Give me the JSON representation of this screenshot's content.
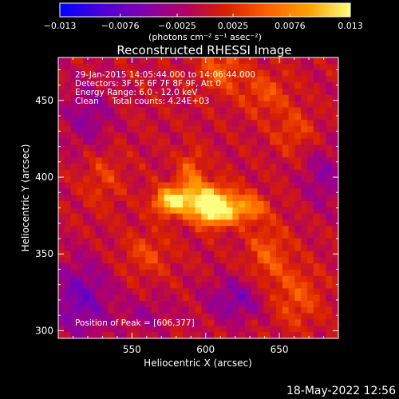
{
  "chart_data": {
    "type": "heatmap",
    "title": "Reconstructed RHESSI Image",
    "xlabel": "Heliocentric X (arcsec)",
    "ylabel": "Heliocentric Y (arcsec)",
    "xlim": [
      500,
      690
    ],
    "ylim": [
      295,
      478
    ],
    "x_ticks": [
      550,
      600,
      650
    ],
    "y_ticks": [
      300,
      350,
      400,
      450
    ],
    "colorbar": {
      "min": -0.013,
      "max": 0.013,
      "tick_values": [
        -0.013,
        -0.0076,
        -0.0025,
        0.0025,
        0.0076,
        0.013
      ],
      "tick_labels": [
        "−0.013",
        "−0.0076",
        "−0.0025",
        "0.0025",
        "0.0076",
        "0.013"
      ],
      "unit_label": "(photons cm⁻² s⁻¹ asec⁻²)",
      "colors": [
        "#0000ff",
        "#4a00d8",
        "#8000b0",
        "#b00068",
        "#d82000",
        "#ff6000",
        "#ffa000",
        "#ffff80"
      ]
    },
    "annotations": [
      "29-Jan-2015 14:05:44.000 to 14:06:44.000",
      "Detectors: 3F 5F 6F 7F 8F 9F, Att 0",
      "Energy Range: 6.0 - 12.0 keV",
      "Clean     Total counts: 4.24E+03"
    ],
    "peak_label": "Position of Peak = [606,377]",
    "peak": [
      606,
      377
    ],
    "sources": [
      {
        "x": 606,
        "y": 378,
        "amp": 0.0125,
        "sx": 9,
        "sy": 7
      },
      {
        "x": 576,
        "y": 384,
        "amp": 0.0105,
        "sx": 8,
        "sy": 6
      },
      {
        "x": 598,
        "y": 386,
        "amp": 0.009,
        "sx": 14,
        "sy": 8
      },
      {
        "x": 628,
        "y": 380,
        "amp": 0.0075,
        "sx": 9,
        "sy": 6
      },
      {
        "x": 590,
        "y": 404,
        "amp": 0.005,
        "sx": 6,
        "sy": 10
      },
      {
        "x": 642,
        "y": 350,
        "amp": 0.0045,
        "sx": 10,
        "sy": 14
      },
      {
        "x": 662,
        "y": 322,
        "amp": 0.0042,
        "sx": 12,
        "sy": 14
      },
      {
        "x": 560,
        "y": 350,
        "amp": 0.0035,
        "sx": 12,
        "sy": 10
      },
      {
        "x": 610,
        "y": 470,
        "amp": 0.005,
        "sx": 10,
        "sy": 10
      },
      {
        "x": 640,
        "y": 455,
        "amp": 0.004,
        "sx": 12,
        "sy": 10
      },
      {
        "x": 660,
        "y": 430,
        "amp": 0.0035,
        "sx": 10,
        "sy": 10
      },
      {
        "x": 530,
        "y": 400,
        "amp": 0.003,
        "sx": 10,
        "sy": 14
      },
      {
        "x": 520,
        "y": 440,
        "amp": -0.004,
        "sx": 12,
        "sy": 16
      },
      {
        "x": 515,
        "y": 320,
        "amp": -0.006,
        "sx": 14,
        "sy": 18
      },
      {
        "x": 620,
        "y": 320,
        "amp": -0.005,
        "sx": 14,
        "sy": 10
      },
      {
        "x": 680,
        "y": 400,
        "amp": -0.004,
        "sx": 10,
        "sy": 14
      },
      {
        "x": 560,
        "y": 310,
        "amp": -0.003,
        "sx": 12,
        "sy": 8
      }
    ]
  },
  "footer": {
    "timestamp": "18-May-2022 12:56"
  }
}
